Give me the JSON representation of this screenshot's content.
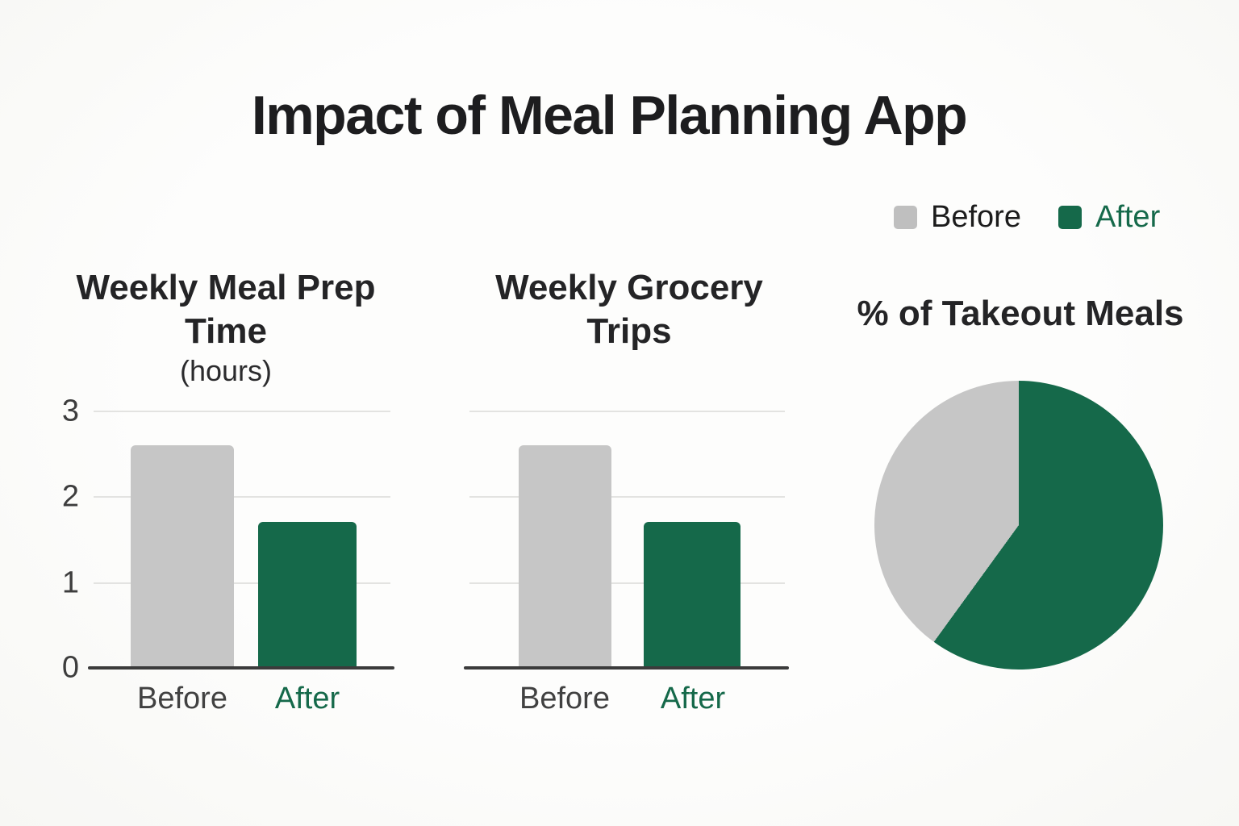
{
  "title": "Impact of Meal Planning App",
  "colors": {
    "before": "#c6c6c6",
    "after": "#15694a",
    "title_text": "#1d1d1f",
    "gridline": "#e3e3e1",
    "baseline": "#3b3b3b"
  },
  "legend": {
    "position": "top-right",
    "items": [
      {
        "label": "Before",
        "color": "#c6c6c6"
      },
      {
        "label": "After",
        "color": "#15694a"
      }
    ]
  },
  "chart_data": [
    {
      "type": "bar",
      "title": "Weekly Meal Prep Time",
      "subtitle": "(hours)",
      "categories": [
        "Before",
        "After"
      ],
      "values": [
        2.6,
        1.7
      ],
      "colors": [
        "#c6c6c6",
        "#15694a"
      ],
      "ylim": [
        0,
        3
      ],
      "yticks": [
        0,
        1,
        2,
        3
      ],
      "ytick_labels": [
        "3",
        "2",
        "1",
        "0"
      ],
      "grid": true,
      "xlabel": "",
      "ylabel": ""
    },
    {
      "type": "bar",
      "title": "Weekly Grocery Trips",
      "subtitle": "",
      "categories": [
        "Before",
        "After"
      ],
      "values": [
        2.6,
        1.7
      ],
      "colors": [
        "#c6c6c6",
        "#15694a"
      ],
      "ylim": [
        0,
        3
      ],
      "yticks": [
        0,
        1,
        2,
        3
      ],
      "ytick_labels_shown": false,
      "grid": true,
      "xlabel": "",
      "ylabel": ""
    },
    {
      "type": "pie",
      "title": "% of Takeout Meals",
      "slices": [
        {
          "label": "After",
          "value": 60,
          "color": "#15694a"
        },
        {
          "label": "Before",
          "value": 40,
          "color": "#c6c6c6"
        }
      ],
      "start_angle_deg": 0,
      "direction": "clockwise",
      "legend_position": "none"
    }
  ]
}
